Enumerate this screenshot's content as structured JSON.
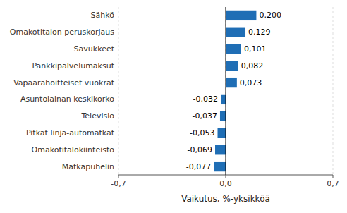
{
  "chart_data": {
    "type": "bar",
    "orientation": "horizontal",
    "categories": [
      "Matkapuhelin",
      "Omakotitalokiinteistö",
      "Pitkät linja-automatkat",
      "Televisio",
      "Asuntolainan keskikorko",
      "Vapaarahoitteiset vuokrat",
      "Pankkipalvelumaksut",
      "Savukkeet",
      "Omakotitalon peruskorjaus",
      "Sähkö"
    ],
    "values": [
      -0.077,
      -0.069,
      -0.053,
      -0.037,
      -0.032,
      0.073,
      0.082,
      0.101,
      0.129,
      0.2
    ],
    "value_labels": [
      "-0,077",
      "-0,069",
      "-0,053",
      "-0,037",
      "-0,032",
      "0,073",
      "0,082",
      "0,101",
      "0,129",
      "0,200"
    ],
    "data_labels": true,
    "color": "#1F6EB5",
    "xlabel": "Vaikutus, %-yksikköä",
    "xlim": [
      -0.7,
      0.7
    ],
    "xticks": [
      {
        "value": -0.7,
        "label": "-0,7"
      },
      {
        "value": 0.0,
        "label": "0,0"
      },
      {
        "value": 0.7,
        "label": "0,7"
      }
    ],
    "grid": true
  }
}
